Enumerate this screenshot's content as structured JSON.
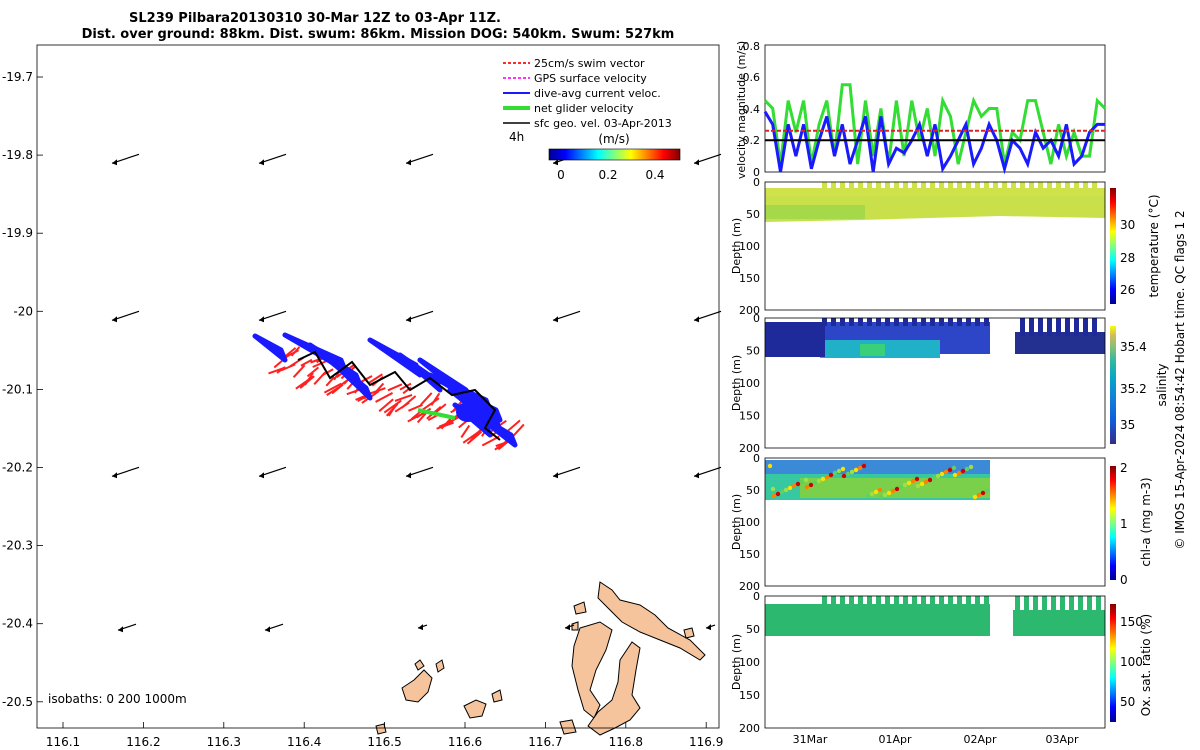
{
  "title": {
    "line1": "SL239 Pilbara20130310 30-Mar 12Z to 03-Apr 11Z.",
    "line2": "Dist. over ground: 88km. Dist. swum: 86km. Mission DOG: 540km. Swum: 527km"
  },
  "map": {
    "x_ticks": [
      "116.1",
      "116.2",
      "116.3",
      "116.4",
      "116.5",
      "116.6",
      "116.7",
      "116.8",
      "116.9"
    ],
    "y_ticks": [
      "-19.7",
      "-19.8",
      "-19.9",
      "-20",
      "-20.1",
      "-20.2",
      "-20.3",
      "-20.4",
      "-20.5"
    ],
    "legend": [
      {
        "label": "25cm/s swim vector",
        "color": "#ff2a2a"
      },
      {
        "label": "GPS surface velocity",
        "color": "#ff33ff"
      },
      {
        "label": "dive-avg current veloc.",
        "color": "#1a1aff"
      },
      {
        "label": "net glider velocity",
        "color": "#33dd33"
      },
      {
        "label": "sfc geo. vel. 03-Apr-2013",
        "color": "#000000"
      }
    ],
    "time_scale_label": "4h",
    "colorbar_label": "(m/s)",
    "colorbar_ticks": [
      "0",
      "0.2",
      "0.4"
    ],
    "isobaths_label": "isobaths: 0   200  1000m",
    "land_color": "#f5c49c"
  },
  "chart_data": [
    {
      "type": "line",
      "ylabel": "velocity magnitude (m/s)",
      "ylim": [
        0,
        0.8
      ],
      "y_ticks": [
        "0",
        "0.2",
        "0.4",
        "0.6",
        "0.8"
      ],
      "x_range_days": [
        "30-Mar 12Z",
        "03-Apr 11Z"
      ],
      "series": [
        {
          "color": "#33dd33",
          "values": [
            0.45,
            0.4,
            0.05,
            0.45,
            0.25,
            0.45,
            0.05,
            0.3,
            0.45,
            0.1,
            0.55,
            0.55,
            0.05,
            0.45,
            0.1,
            0.4,
            0.05,
            0.45,
            0.1,
            0.45,
            0.2,
            0.4,
            0.1,
            0.45,
            0.35,
            0.05,
            0.25,
            0.45,
            0.35,
            0.4,
            0.4,
            0.05,
            0.25,
            0.2,
            0.45,
            0.45,
            0.25,
            0.05,
            0.3,
            0.1,
            0.25,
            0.1,
            0.1,
            0.45,
            0.4
          ]
        },
        {
          "color": "#1a1aff",
          "values": [
            0.38,
            0.3,
            0.0,
            0.3,
            0.1,
            0.3,
            0.02,
            0.2,
            0.35,
            0.1,
            0.3,
            0.05,
            0.2,
            0.35,
            0.0,
            0.35,
            0.05,
            0.15,
            0.12,
            0.2,
            0.3,
            0.1,
            0.3,
            0.02,
            0.1,
            0.2,
            0.3,
            0.05,
            0.15,
            0.3,
            0.2,
            0.02,
            0.2,
            0.15,
            0.05,
            0.25,
            0.15,
            0.2,
            0.1,
            0.3,
            0.05,
            0.1,
            0.25,
            0.3,
            0.3
          ]
        },
        {
          "color": "#dd2222",
          "values": [
            0.26,
            0.26,
            0.26,
            0.26,
            0.26,
            0.26,
            0.26,
            0.26,
            0.26,
            0.26,
            0.26,
            0.26,
            0.26,
            0.26,
            0.26,
            0.26,
            0.26,
            0.26,
            0.26,
            0.26,
            0.26,
            0.26,
            0.26,
            0.26,
            0.26,
            0.26,
            0.26,
            0.26,
            0.26,
            0.26,
            0.26,
            0.26,
            0.26,
            0.26,
            0.26,
            0.26,
            0.26,
            0.26,
            0.26,
            0.26,
            0.26,
            0.26,
            0.26,
            0.26,
            0.26
          ]
        },
        {
          "color": "#000000",
          "values": [
            0.2,
            0.2,
            0.2,
            0.2,
            0.2,
            0.2,
            0.2,
            0.2,
            0.2,
            0.2,
            0.2,
            0.2,
            0.2,
            0.2,
            0.2,
            0.2,
            0.2,
            0.2,
            0.2,
            0.2,
            0.2,
            0.2,
            0.2,
            0.2,
            0.2,
            0.2,
            0.2,
            0.2,
            0.2,
            0.2,
            0.2,
            0.2,
            0.2,
            0.2,
            0.2,
            0.2,
            0.2,
            0.2,
            0.2,
            0.2,
            0.2,
            0.2,
            0.2,
            0.2,
            0.2
          ]
        }
      ]
    },
    {
      "type": "heatmap",
      "ylabel": "Depth (m)",
      "ylim": [
        200,
        0
      ],
      "y_ticks": [
        "0",
        "50",
        "100",
        "150",
        "200"
      ],
      "colorbar_label": "temperature (°C)",
      "colorbar_ticks": [
        "26",
        "28",
        "30"
      ]
    },
    {
      "type": "heatmap",
      "ylabel": "Depth (m)",
      "ylim": [
        200,
        0
      ],
      "y_ticks": [
        "0",
        "50",
        "100",
        "150",
        "200"
      ],
      "colorbar_label": "salinity",
      "colorbar_ticks": [
        "35",
        "35.2",
        "35.4"
      ]
    },
    {
      "type": "heatmap",
      "ylabel": "Depth (m)",
      "ylim": [
        200,
        0
      ],
      "y_ticks": [
        "0",
        "50",
        "100",
        "150",
        "200"
      ],
      "colorbar_label": "chl-a (mg m-3)",
      "colorbar_ticks": [
        "0",
        "1",
        "2"
      ]
    },
    {
      "type": "heatmap",
      "ylabel": "Depth (m)",
      "ylim": [
        200,
        0
      ],
      "y_ticks": [
        "0",
        "50",
        "100",
        "150",
        "200"
      ],
      "colorbar_label": "Ox. sat. ratio (%)",
      "colorbar_ticks": [
        "50",
        "100",
        "150"
      ],
      "x_ticks": [
        "31Mar",
        "01Apr",
        "02Apr",
        "03Apr"
      ]
    }
  ],
  "footer": "© IMOS 15-Apr-2024 08:54:42 Hobart time. QC flags 1  2"
}
